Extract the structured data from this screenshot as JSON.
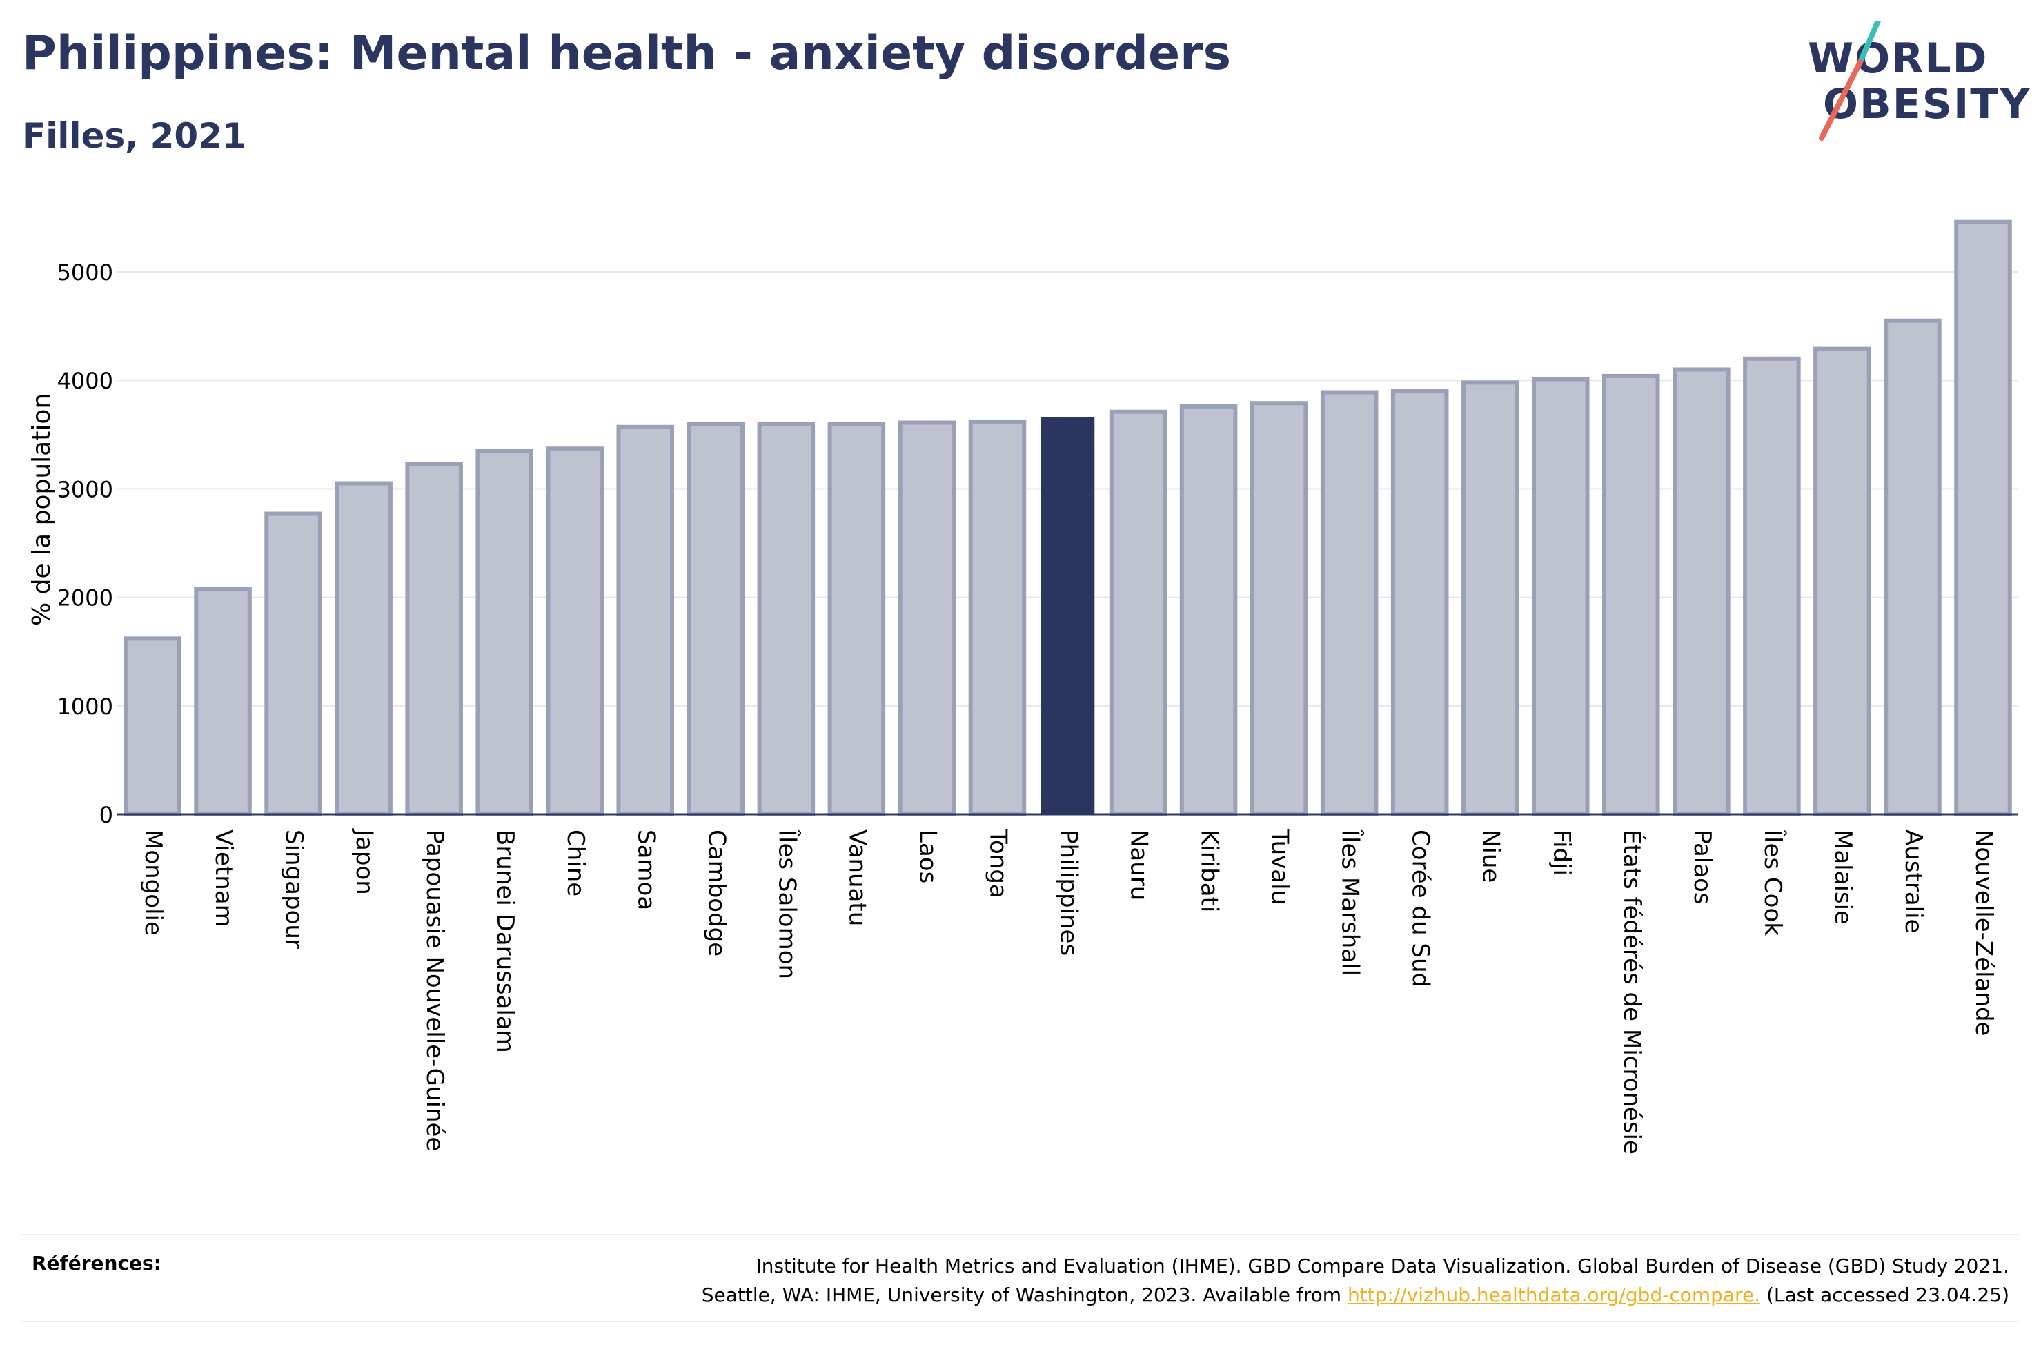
{
  "header": {
    "title": "Philippines: Mental health - anxiety disorders",
    "subtitle": "Filles, 2021"
  },
  "logo": {
    "line1": "WORLD",
    "line2": "OBESITY",
    "slash_colors": [
      "#3bbfb5",
      "#e8685a"
    ]
  },
  "colors": {
    "bar": "#bfc3d0",
    "bar_border": "#9aa0b8",
    "highlight": "#2a3560",
    "grid": "#e6e6e6",
    "axis": "#2a3560"
  },
  "chart_data": {
    "type": "bar",
    "title": "Philippines: Mental health - anxiety disorders",
    "subtitle": "Filles, 2021",
    "xlabel": "",
    "ylabel": "% de la population",
    "ylim": [
      0,
      5500
    ],
    "yticks": [
      0,
      1000,
      2000,
      3000,
      4000,
      5000
    ],
    "grid": true,
    "highlight": "Philippines",
    "categories": [
      "Mongolie",
      "Vietnam",
      "Singapour",
      "Japon",
      "Papouasie Nouvelle-Guinée",
      "Brunei Darussalam",
      "Chine",
      "Samoa",
      "Cambodge",
      "Îles Salomon",
      "Vanuatu",
      "Laos",
      "Tonga",
      "Philippines",
      "Nauru",
      "Kiribati",
      "Tuvalu",
      "Îles Marshall",
      "Corée du Sud",
      "Niue",
      "Fidji",
      "États fédérés de Micronésie",
      "Palaos",
      "Îles Cook",
      "Malaisie",
      "Australie",
      "Nouvelle-Zélande"
    ],
    "values": [
      1620,
      2080,
      2770,
      3050,
      3230,
      3350,
      3370,
      3570,
      3600,
      3600,
      3600,
      3610,
      3620,
      3660,
      3710,
      3760,
      3790,
      3890,
      3900,
      3980,
      4010,
      4040,
      4100,
      4200,
      4290,
      4550,
      5460
    ]
  },
  "references": {
    "label": "Références:",
    "line1": "Institute for Health Metrics and Evaluation (IHME). GBD Compare Data Visualization. Global Burden of Disease (GBD) Study 2021.",
    "line2_prefix": "Seattle, WA: IHME, University of Washington, 2023. Available from ",
    "link": "http://vizhub.healthdata.org/gbd-compare.",
    "line2_suffix": " (Last accessed 23.04.25)"
  }
}
